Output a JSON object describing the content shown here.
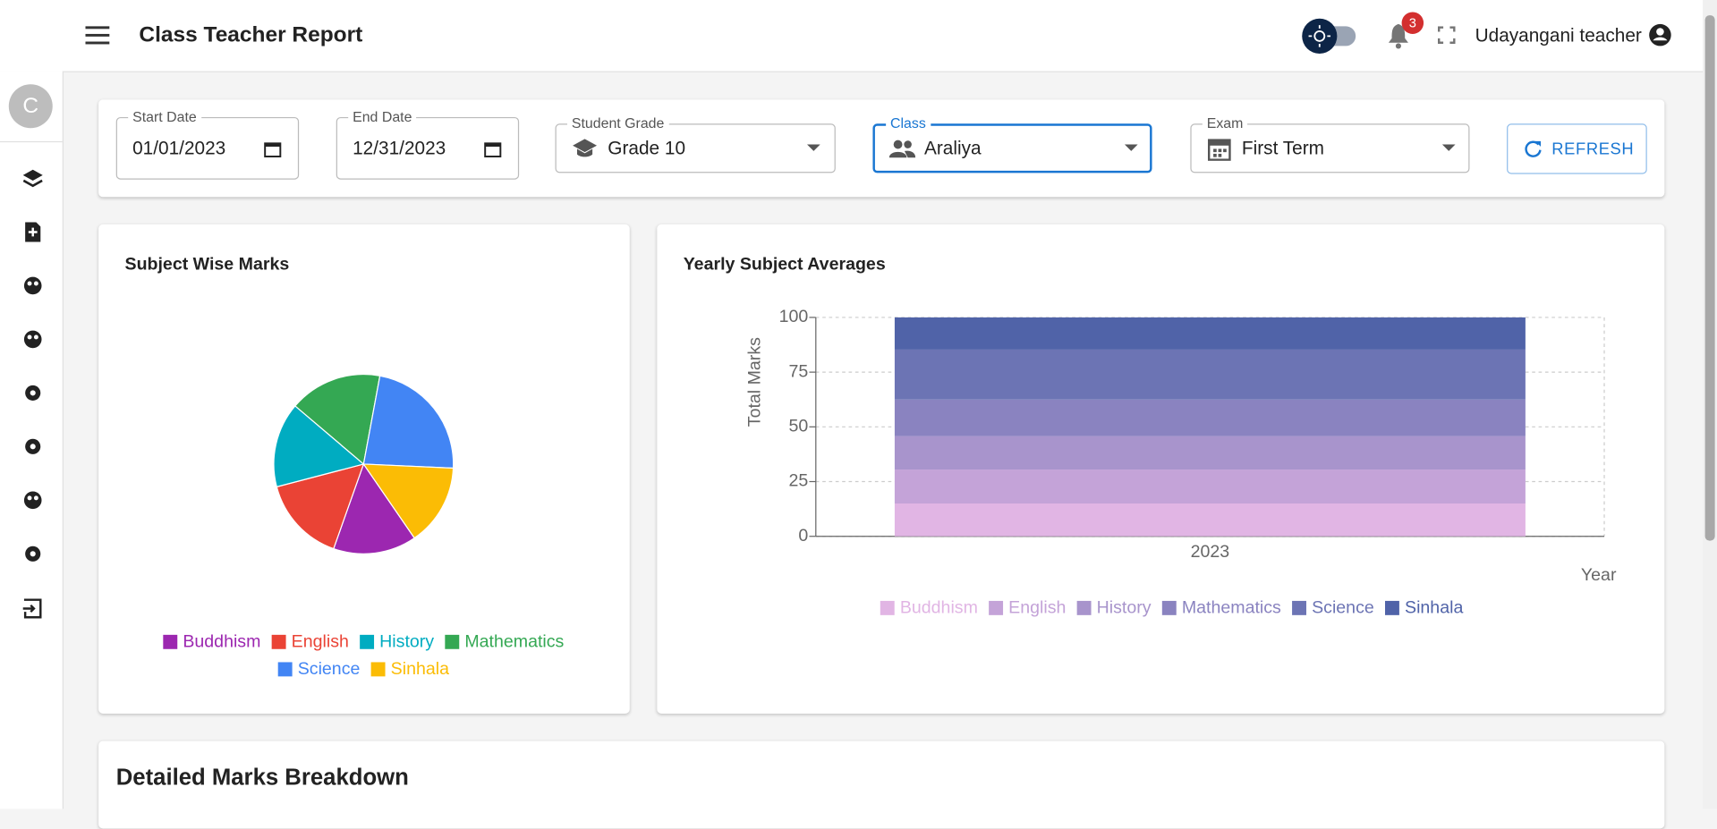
{
  "header": {
    "title": "Class Teacher Report",
    "notifications": "3",
    "user": "Udayangani teacher"
  },
  "sidebar": {
    "avatar": "C"
  },
  "filters": [
    {
      "label": "Start Date",
      "value": "01/01/2023"
    },
    {
      "label": "End Date",
      "value": "12/31/2023"
    },
    {
      "label": "Student Grade",
      "value": "Grade 10"
    },
    {
      "label": "Class",
      "value": "Araliya"
    },
    {
      "label": "Exam",
      "value": "First Term"
    }
  ],
  "refresh": "REFRESH",
  "chart_data": [
    {
      "type": "pie",
      "title": "Subject Wise Marks",
      "categories": [
        "Buddhism",
        "English",
        "History",
        "Mathematics",
        "Science",
        "Sinhala"
      ],
      "values": [
        15,
        15.5,
        15.3,
        16.7,
        22.8,
        14.7
      ],
      "colors": [
        "#9c27b0",
        "#ea4335",
        "#00acc1",
        "#34a853",
        "#4285f4",
        "#fbbc05"
      ]
    },
    {
      "type": "bar",
      "title": "Yearly Subject Averages",
      "stacked": true,
      "x_label": "Year",
      "y_label": "Total Marks",
      "categories": [
        "2023"
      ],
      "series": [
        {
          "name": "Buddhism",
          "color": "#e1b5e4",
          "values": [
            15
          ]
        },
        {
          "name": "English",
          "color": "#c4a3d8",
          "values": [
            15.5
          ]
        },
        {
          "name": "History",
          "color": "#a894cc",
          "values": [
            15.3
          ]
        },
        {
          "name": "Mathematics",
          "color": "#8a83c0",
          "values": [
            16.7
          ]
        },
        {
          "name": "Science",
          "color": "#6c74b4",
          "values": [
            22.8
          ]
        },
        {
          "name": "Sinhala",
          "color": "#5063a8",
          "values": [
            14.7
          ]
        }
      ],
      "ylim": [
        0,
        100
      ],
      "yticks": [
        0,
        25,
        50,
        75,
        100
      ],
      "grid": true
    }
  ],
  "section_title": "Detailed Marks Breakdown"
}
